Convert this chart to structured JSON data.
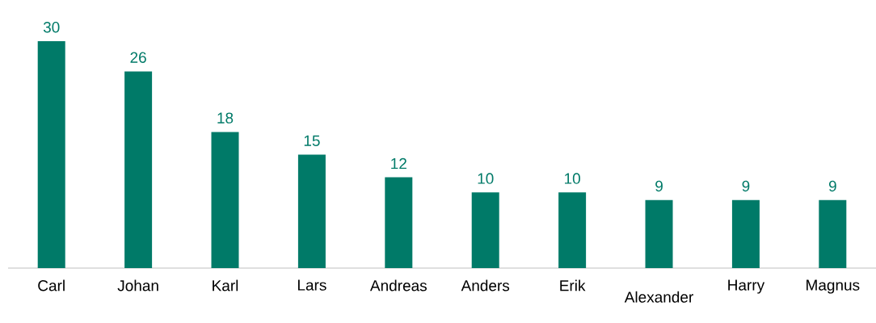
{
  "chart_data": {
    "type": "bar",
    "categories": [
      "Carl",
      "Johan",
      "Karl",
      "Lars",
      "Andreas",
      "Anders",
      "Erik",
      "Alexander",
      "Harry",
      "Magnus"
    ],
    "values": [
      30,
      26,
      18,
      15,
      12,
      10,
      10,
      9,
      9,
      9
    ],
    "color": "#007a68",
    "data_labels": true
  }
}
